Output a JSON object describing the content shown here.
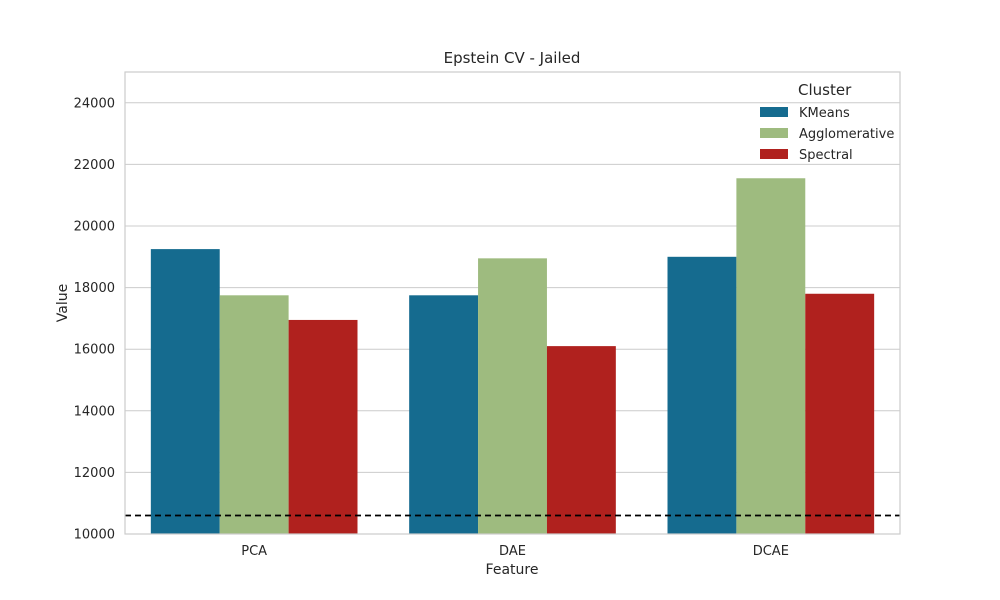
{
  "chart_data": {
    "type": "bar",
    "title": "Epstein CV - Jailed",
    "xlabel": "Feature",
    "ylabel": "Value",
    "categories": [
      "PCA",
      "DAE",
      "DCAE"
    ],
    "ylim": [
      10000,
      25000
    ],
    "yticks": [
      10000,
      12000,
      14000,
      16000,
      18000,
      20000,
      22000,
      24000
    ],
    "series": [
      {
        "name": "KMeans",
        "color": "#156b8f",
        "values": [
          19250,
          17750,
          19000
        ]
      },
      {
        "name": "Agglomerative",
        "color": "#9ebb7f",
        "values": [
          17750,
          18950,
          21550
        ]
      },
      {
        "name": "Spectral",
        "color": "#b0211e",
        "values": [
          16950,
          16100,
          17800
        ]
      }
    ],
    "reference_line": {
      "value": 10600,
      "style": "dashed",
      "color": "#000000"
    },
    "legend": {
      "title": "Cluster",
      "position": "top-right"
    },
    "grid": true
  }
}
